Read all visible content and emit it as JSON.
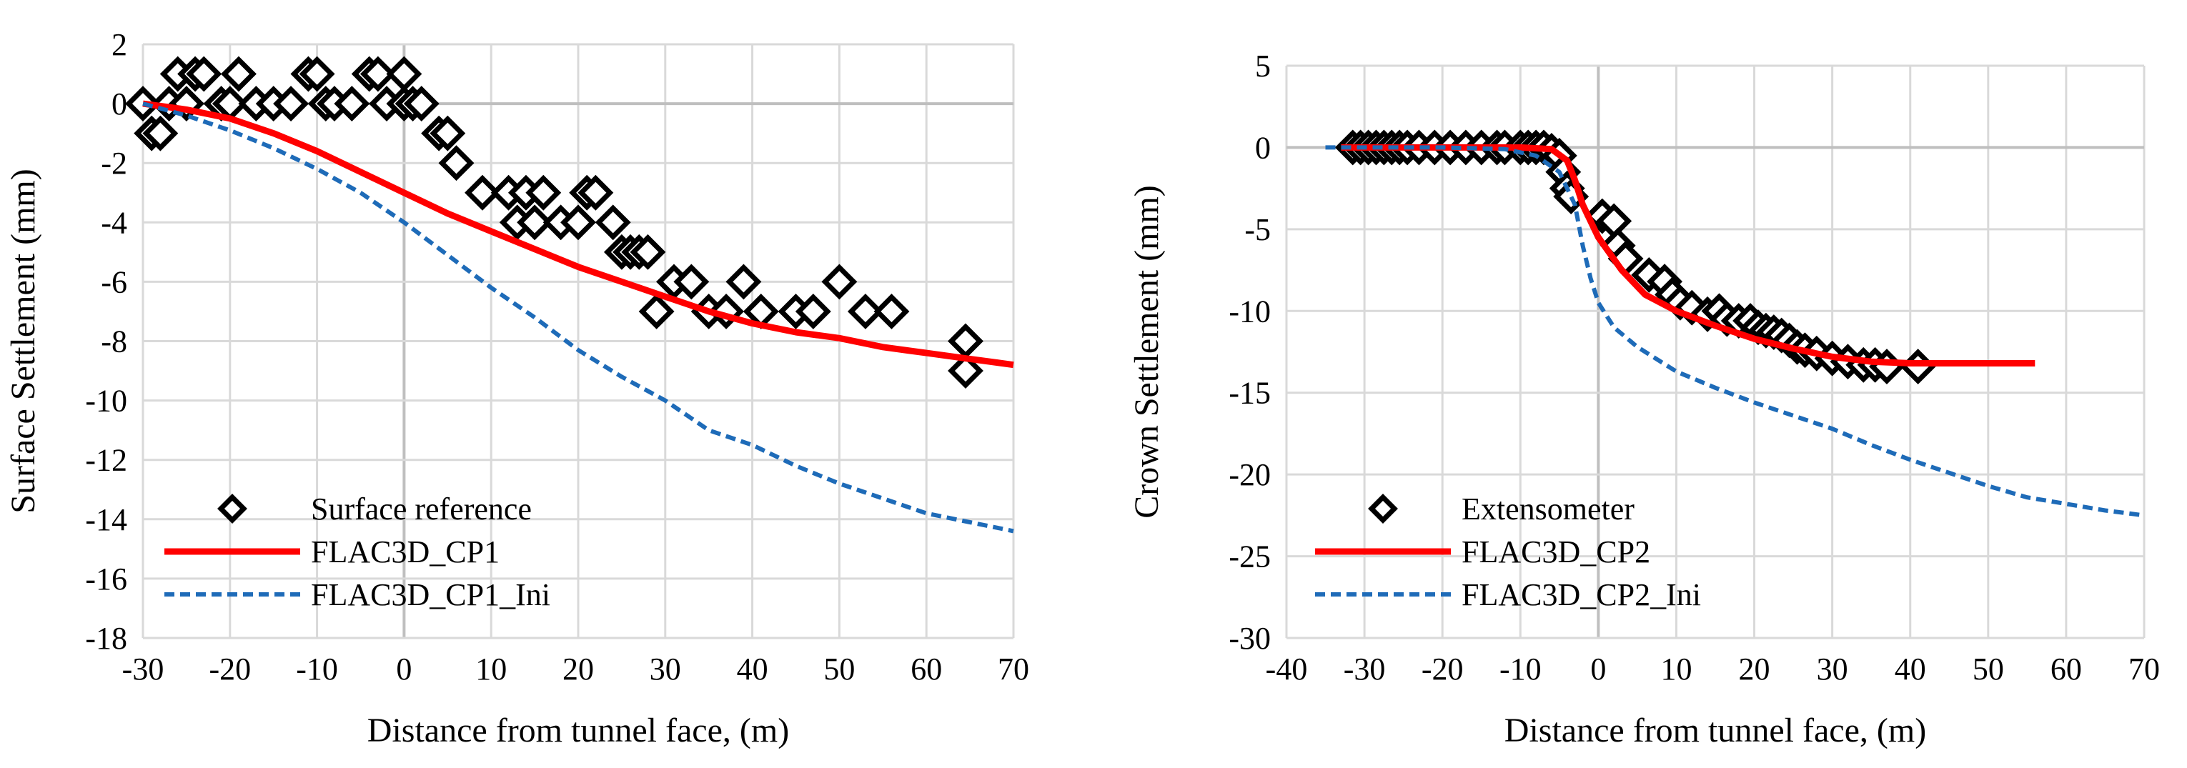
{
  "figure": {
    "panels": 2
  },
  "chart_data": [
    {
      "type": "scatter",
      "xlabel": "Distance from tunnel face, (m)",
      "ylabel": "Surface Settlement (mm)",
      "xlim": [
        -30,
        70
      ],
      "ylim": [
        -18,
        2
      ],
      "xticks": [
        -30,
        -20,
        -10,
        0,
        10,
        20,
        30,
        40,
        50,
        60,
        70
      ],
      "yticks": [
        2,
        0,
        -2,
        -4,
        -6,
        -8,
        -10,
        -12,
        -14,
        -16,
        -18
      ],
      "grid": true,
      "legend_position": "bottom-left",
      "series": [
        {
          "name": "Surface reference",
          "style": "markers",
          "marker": "diamond-open",
          "color": "#000000",
          "points": [
            [
              -30,
              0
            ],
            [
              -29,
              -1
            ],
            [
              -28,
              -1
            ],
            [
              -27,
              0
            ],
            [
              -26,
              1
            ],
            [
              -25,
              0
            ],
            [
              -24,
              1
            ],
            [
              -23,
              1
            ],
            [
              -21,
              0
            ],
            [
              -20,
              0
            ],
            [
              -19,
              1
            ],
            [
              -17,
              0
            ],
            [
              -15,
              0
            ],
            [
              -13,
              0
            ],
            [
              -11,
              1
            ],
            [
              -10,
              1
            ],
            [
              -9,
              0
            ],
            [
              -8,
              0
            ],
            [
              -6,
              0
            ],
            [
              -4,
              1
            ],
            [
              -3,
              1
            ],
            [
              -2,
              0
            ],
            [
              0,
              1
            ],
            [
              0,
              0
            ],
            [
              1,
              0
            ],
            [
              2,
              0
            ],
            [
              4,
              -1
            ],
            [
              5,
              -1
            ],
            [
              6,
              -2
            ],
            [
              9,
              -3
            ],
            [
              12,
              -3
            ],
            [
              13,
              -4
            ],
            [
              14,
              -3
            ],
            [
              15,
              -4
            ],
            [
              16,
              -3
            ],
            [
              18,
              -4
            ],
            [
              20,
              -4
            ],
            [
              21,
              -3
            ],
            [
              22,
              -3
            ],
            [
              24,
              -4
            ],
            [
              25,
              -5
            ],
            [
              26,
              -5
            ],
            [
              27,
              -5
            ],
            [
              28,
              -5
            ],
            [
              29,
              -7
            ],
            [
              31,
              -6
            ],
            [
              33,
              -6
            ],
            [
              35,
              -7
            ],
            [
              37,
              -7
            ],
            [
              39,
              -6
            ],
            [
              41,
              -7
            ],
            [
              45,
              -7
            ],
            [
              47,
              -7
            ],
            [
              50,
              -6
            ],
            [
              53,
              -7
            ],
            [
              56,
              -7
            ],
            [
              64.5,
              -8
            ],
            [
              64.5,
              -9
            ]
          ]
        },
        {
          "name": "FLAC3D_CP1",
          "style": "solid",
          "color": "#ff0000",
          "points": [
            [
              -30,
              0
            ],
            [
              -25,
              -0.2
            ],
            [
              -20,
              -0.5
            ],
            [
              -15,
              -1.0
            ],
            [
              -10,
              -1.6
            ],
            [
              -5,
              -2.3
            ],
            [
              0,
              -3.0
            ],
            [
              5,
              -3.7
            ],
            [
              10,
              -4.3
            ],
            [
              15,
              -4.9
            ],
            [
              20,
              -5.5
            ],
            [
              25,
              -6.0
            ],
            [
              30,
              -6.5
            ],
            [
              35,
              -7.0
            ],
            [
              40,
              -7.4
            ],
            [
              45,
              -7.7
            ],
            [
              50,
              -7.9
            ],
            [
              55,
              -8.2
            ],
            [
              60,
              -8.4
            ],
            [
              65,
              -8.6
            ],
            [
              70,
              -8.8
            ]
          ]
        },
        {
          "name": "FLAC3D_CP1_Ini",
          "style": "dashed",
          "color": "#1e6bb8",
          "points": [
            [
              -30,
              0
            ],
            [
              -25,
              -0.4
            ],
            [
              -20,
              -0.9
            ],
            [
              -15,
              -1.5
            ],
            [
              -10,
              -2.2
            ],
            [
              -5,
              -3.0
            ],
            [
              0,
              -4.0
            ],
            [
              5,
              -5.1
            ],
            [
              10,
              -6.2
            ],
            [
              15,
              -7.2
            ],
            [
              20,
              -8.3
            ],
            [
              25,
              -9.2
            ],
            [
              30,
              -10.0
            ],
            [
              35,
              -11.0
            ],
            [
              40,
              -11.5
            ],
            [
              45,
              -12.2
            ],
            [
              50,
              -12.8
            ],
            [
              55,
              -13.3
            ],
            [
              60,
              -13.8
            ],
            [
              65,
              -14.1
            ],
            [
              70,
              -14.4
            ]
          ]
        }
      ]
    },
    {
      "type": "scatter",
      "xlabel": "Distance from tunnel face, (m)",
      "ylabel": "Crown Settlement (mm)",
      "xlim": [
        -40,
        70
      ],
      "ylim": [
        -30,
        5
      ],
      "xticks": [
        -40,
        -30,
        -20,
        -10,
        0,
        10,
        20,
        30,
        40,
        50,
        60,
        70
      ],
      "yticks": [
        5,
        0,
        -5,
        -10,
        -15,
        -20,
        -25,
        -30
      ],
      "grid": true,
      "legend_position": "bottom-left",
      "series": [
        {
          "name": "Extensometer",
          "style": "markers",
          "marker": "diamond-open",
          "color": "#000000",
          "points": [
            [
              -31.5,
              0
            ],
            [
              -30.5,
              0
            ],
            [
              -29.5,
              0
            ],
            [
              -28.5,
              0
            ],
            [
              -27.5,
              0
            ],
            [
              -26.5,
              0
            ],
            [
              -25.5,
              0
            ],
            [
              -24.5,
              0
            ],
            [
              -23,
              0
            ],
            [
              -21,
              0
            ],
            [
              -19,
              0
            ],
            [
              -17,
              0
            ],
            [
              -15,
              0
            ],
            [
              -13,
              0
            ],
            [
              -12,
              0
            ],
            [
              -10,
              0
            ],
            [
              -9,
              0
            ],
            [
              -8,
              0
            ],
            [
              -7,
              0
            ],
            [
              -6,
              -0.2
            ],
            [
              -5,
              -0.5
            ],
            [
              -4.5,
              -1.5
            ],
            [
              -4,
              -2.5
            ],
            [
              -3.5,
              -3.0
            ],
            [
              0.5,
              -4.2
            ],
            [
              2,
              -4.5
            ],
            [
              2.5,
              -6.0
            ],
            [
              3.5,
              -6.8
            ],
            [
              6.5,
              -7.8
            ],
            [
              8.5,
              -8.2
            ],
            [
              9.5,
              -9.0
            ],
            [
              10.5,
              -9.5
            ],
            [
              12,
              -9.8
            ],
            [
              14,
              -10.2
            ],
            [
              15.5,
              -10.0
            ],
            [
              16.5,
              -10.5
            ],
            [
              18,
              -10.6
            ],
            [
              19.5,
              -10.6
            ],
            [
              20.5,
              -11.0
            ],
            [
              21.5,
              -11.2
            ],
            [
              22.5,
              -11.3
            ],
            [
              23.5,
              -11.5
            ],
            [
              24.5,
              -11.8
            ],
            [
              25.5,
              -12.2
            ],
            [
              26.5,
              -12.4
            ],
            [
              28,
              -12.6
            ],
            [
              30,
              -12.9
            ],
            [
              32,
              -13.1
            ],
            [
              34,
              -13.3
            ],
            [
              35.5,
              -13.3
            ],
            [
              37,
              -13.4
            ],
            [
              41,
              -13.4
            ]
          ]
        },
        {
          "name": "FLAC3D_CP2",
          "style": "solid",
          "color": "#ff0000",
          "points": [
            [
              -33,
              0
            ],
            [
              -20,
              0
            ],
            [
              -10,
              0
            ],
            [
              -6,
              -0.1
            ],
            [
              -4,
              -0.8
            ],
            [
              -3,
              -2.0
            ],
            [
              -2,
              -3.5
            ],
            [
              0,
              -5.5
            ],
            [
              3,
              -7.5
            ],
            [
              6,
              -9.0
            ],
            [
              10,
              -10.0
            ],
            [
              15,
              -10.9
            ],
            [
              20,
              -11.7
            ],
            [
              25,
              -12.3
            ],
            [
              30,
              -12.8
            ],
            [
              35,
              -13.1
            ],
            [
              40,
              -13.2
            ],
            [
              45,
              -13.2
            ],
            [
              50,
              -13.2
            ],
            [
              55,
              -13.2
            ],
            [
              56,
              -13.2
            ]
          ]
        },
        {
          "name": "FLAC3D_CP2_Ini",
          "style": "dashed",
          "color": "#1e6bb8",
          "points": [
            [
              -35,
              0
            ],
            [
              -20,
              0
            ],
            [
              -12,
              -0.1
            ],
            [
              -8,
              -0.5
            ],
            [
              -5,
              -1.5
            ],
            [
              -3,
              -3.5
            ],
            [
              -2,
              -6.0
            ],
            [
              -1,
              -8.0
            ],
            [
              0,
              -9.5
            ],
            [
              2,
              -11.0
            ],
            [
              5,
              -12.2
            ],
            [
              10,
              -13.7
            ],
            [
              15,
              -14.7
            ],
            [
              20,
              -15.6
            ],
            [
              25,
              -16.4
            ],
            [
              30,
              -17.2
            ],
            [
              35,
              -18.2
            ],
            [
              40,
              -19.1
            ],
            [
              45,
              -19.9
            ],
            [
              50,
              -20.7
            ],
            [
              55,
              -21.4
            ],
            [
              60,
              -21.8
            ],
            [
              65,
              -22.2
            ],
            [
              70,
              -22.5
            ]
          ]
        }
      ]
    }
  ]
}
